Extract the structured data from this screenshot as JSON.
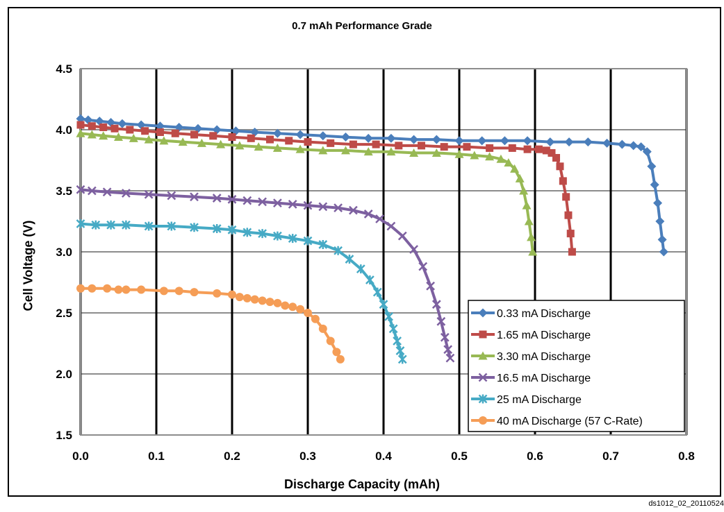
{
  "chart_data": {
    "type": "line",
    "title": "0.7 mAh Performance Grade",
    "xlabel": "Discharge Capacity (mAh)",
    "ylabel": "Cell Voltage (V)",
    "xlim": [
      0.0,
      0.8
    ],
    "ylim": [
      1.5,
      4.5
    ],
    "x_ticks": [
      "0.0",
      "0.1",
      "0.2",
      "0.3",
      "0.4",
      "0.5",
      "0.6",
      "0.7",
      "0.8"
    ],
    "y_ticks": [
      "1.5",
      "2.0",
      "2.5",
      "3.0",
      "3.5",
      "4.0",
      "4.5"
    ],
    "grid": "both",
    "legend_position": "bottom-right",
    "series": [
      {
        "name": "0.33 mA Discharge",
        "color": "#4a7ebb",
        "marker": "diamond",
        "x": [
          0.0,
          0.01,
          0.025,
          0.04,
          0.055,
          0.08,
          0.105,
          0.13,
          0.155,
          0.18,
          0.205,
          0.23,
          0.26,
          0.29,
          0.32,
          0.35,
          0.38,
          0.41,
          0.44,
          0.47,
          0.5,
          0.53,
          0.56,
          0.59,
          0.62,
          0.645,
          0.67,
          0.695,
          0.715,
          0.73,
          0.74,
          0.748,
          0.754,
          0.758,
          0.762,
          0.765,
          0.768,
          0.77
        ],
        "y": [
          4.09,
          4.08,
          4.07,
          4.06,
          4.05,
          4.04,
          4.03,
          4.02,
          4.01,
          4.0,
          3.99,
          3.98,
          3.97,
          3.96,
          3.95,
          3.94,
          3.93,
          3.93,
          3.92,
          3.92,
          3.91,
          3.91,
          3.91,
          3.91,
          3.9,
          3.9,
          3.9,
          3.89,
          3.88,
          3.87,
          3.86,
          3.82,
          3.7,
          3.55,
          3.4,
          3.25,
          3.1,
          3.0
        ]
      },
      {
        "name": "1.65 mA Discharge",
        "color": "#be4b48",
        "marker": "square",
        "x": [
          0.0,
          0.015,
          0.03,
          0.045,
          0.065,
          0.085,
          0.105,
          0.125,
          0.15,
          0.175,
          0.2,
          0.225,
          0.25,
          0.275,
          0.3,
          0.33,
          0.36,
          0.39,
          0.42,
          0.45,
          0.48,
          0.51,
          0.54,
          0.57,
          0.59,
          0.605,
          0.615,
          0.622,
          0.628,
          0.633,
          0.637,
          0.641,
          0.644,
          0.647,
          0.649
        ],
        "y": [
          4.04,
          4.03,
          4.02,
          4.01,
          4.0,
          3.99,
          3.98,
          3.97,
          3.96,
          3.95,
          3.94,
          3.93,
          3.92,
          3.91,
          3.9,
          3.89,
          3.88,
          3.88,
          3.87,
          3.87,
          3.86,
          3.86,
          3.85,
          3.85,
          3.84,
          3.84,
          3.83,
          3.81,
          3.77,
          3.7,
          3.58,
          3.45,
          3.3,
          3.15,
          3.0
        ]
      },
      {
        "name": "3.30 mA Discharge",
        "color": "#98b954",
        "marker": "triangle",
        "x": [
          0.0,
          0.015,
          0.03,
          0.05,
          0.07,
          0.09,
          0.11,
          0.135,
          0.16,
          0.185,
          0.21,
          0.235,
          0.26,
          0.29,
          0.32,
          0.35,
          0.38,
          0.41,
          0.44,
          0.47,
          0.5,
          0.52,
          0.54,
          0.555,
          0.565,
          0.573,
          0.58,
          0.585,
          0.589,
          0.592,
          0.595,
          0.597
        ],
        "y": [
          3.97,
          3.96,
          3.95,
          3.94,
          3.93,
          3.92,
          3.91,
          3.9,
          3.89,
          3.88,
          3.87,
          3.86,
          3.85,
          3.84,
          3.83,
          3.83,
          3.82,
          3.82,
          3.81,
          3.81,
          3.8,
          3.79,
          3.78,
          3.76,
          3.73,
          3.68,
          3.6,
          3.5,
          3.38,
          3.25,
          3.12,
          3.0
        ]
      },
      {
        "name": "16.5 mA Discharge",
        "color": "#7d60a0",
        "marker": "x",
        "x": [
          0.0,
          0.015,
          0.035,
          0.06,
          0.09,
          0.12,
          0.15,
          0.18,
          0.2,
          0.22,
          0.24,
          0.26,
          0.28,
          0.3,
          0.32,
          0.34,
          0.36,
          0.38,
          0.395,
          0.41,
          0.425,
          0.44,
          0.452,
          0.462,
          0.47,
          0.476,
          0.481,
          0.485,
          0.488
        ],
        "y": [
          3.51,
          3.5,
          3.49,
          3.48,
          3.47,
          3.46,
          3.45,
          3.44,
          3.43,
          3.42,
          3.41,
          3.4,
          3.39,
          3.38,
          3.37,
          3.36,
          3.34,
          3.31,
          3.27,
          3.21,
          3.13,
          3.02,
          2.88,
          2.72,
          2.57,
          2.43,
          2.3,
          2.2,
          2.13
        ]
      },
      {
        "name": "25 mA Discharge",
        "color": "#46aac5",
        "marker": "star",
        "x": [
          0.0,
          0.02,
          0.04,
          0.06,
          0.09,
          0.12,
          0.15,
          0.18,
          0.2,
          0.22,
          0.24,
          0.26,
          0.28,
          0.3,
          0.32,
          0.34,
          0.355,
          0.37,
          0.382,
          0.392,
          0.4,
          0.407,
          0.413,
          0.418,
          0.422,
          0.425
        ],
        "y": [
          3.23,
          3.22,
          3.22,
          3.22,
          3.21,
          3.21,
          3.2,
          3.19,
          3.18,
          3.16,
          3.15,
          3.13,
          3.11,
          3.09,
          3.06,
          3.01,
          2.94,
          2.86,
          2.77,
          2.67,
          2.57,
          2.47,
          2.37,
          2.27,
          2.19,
          2.12
        ]
      },
      {
        "name": "40 mA Discharge (57 C-Rate)",
        "color": "#f59d56",
        "marker": "circle",
        "x": [
          0.0,
          0.015,
          0.035,
          0.05,
          0.06,
          0.08,
          0.11,
          0.13,
          0.15,
          0.18,
          0.2,
          0.21,
          0.22,
          0.23,
          0.24,
          0.25,
          0.26,
          0.27,
          0.28,
          0.29,
          0.3,
          0.31,
          0.32,
          0.33,
          0.338,
          0.343
        ],
        "y": [
          2.7,
          2.7,
          2.7,
          2.69,
          2.69,
          2.69,
          2.68,
          2.68,
          2.67,
          2.66,
          2.65,
          2.63,
          2.62,
          2.61,
          2.6,
          2.59,
          2.58,
          2.56,
          2.55,
          2.53,
          2.5,
          2.45,
          2.37,
          2.27,
          2.18,
          2.12
        ]
      }
    ]
  },
  "footer": {
    "figure_id": "ds1012_02_20110524"
  }
}
